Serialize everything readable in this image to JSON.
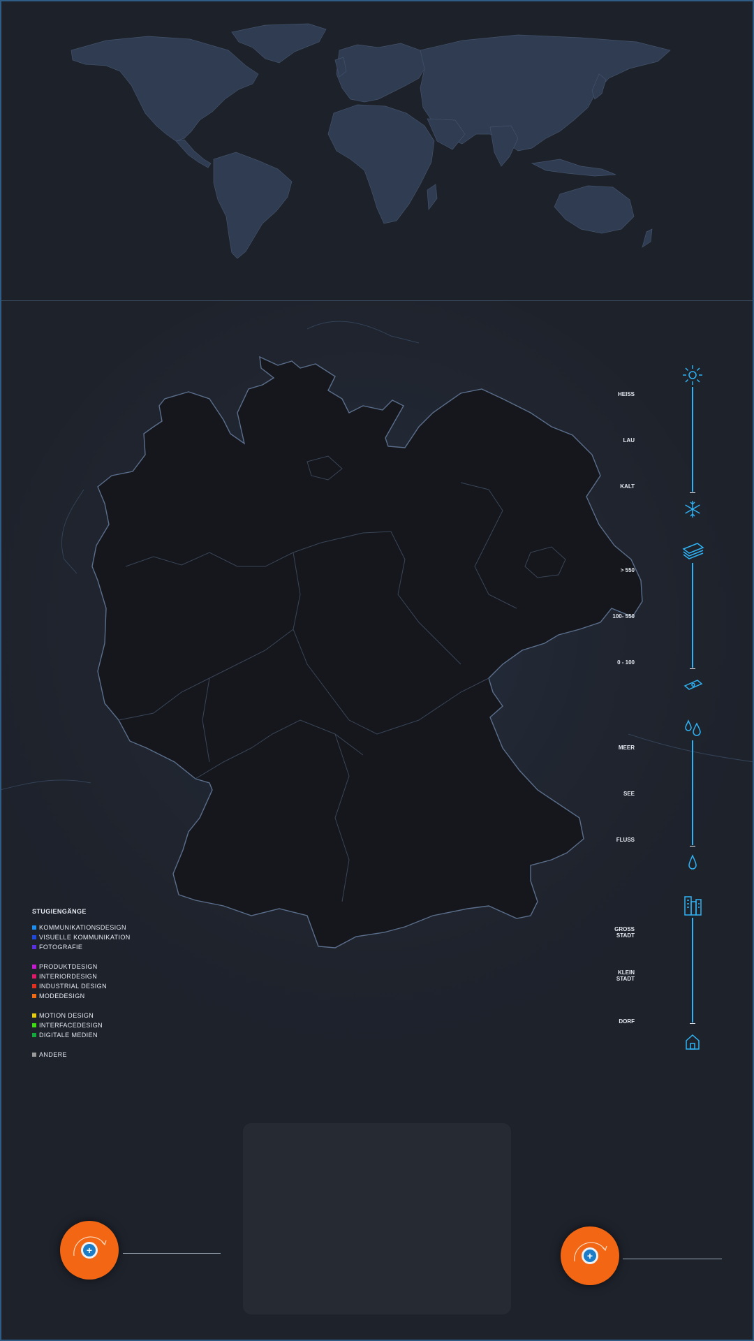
{
  "legend": {
    "title": "STUGIENGÄNGE",
    "groups": [
      {
        "items": [
          {
            "label": "KOMMUNIKATIONSDESIGN",
            "color": "#1c8ff0"
          },
          {
            "label": "VISUELLE KOMMUNIKATION",
            "color": "#1f49d8"
          },
          {
            "label": "FOTOGRAFIE",
            "color": "#5a2fe0"
          }
        ]
      },
      {
        "items": [
          {
            "label": "PRODUKTDESIGN",
            "color": "#c51ad0"
          },
          {
            "label": "INTERIORDESIGN",
            "color": "#e0186a"
          },
          {
            "label": "INDUSTRIAL DESIGN",
            "color": "#e02f1f"
          },
          {
            "label": "MODEDESIGN",
            "color": "#ee6a14"
          }
        ]
      },
      {
        "items": [
          {
            "label": "MOTION DESIGN",
            "color": "#e6cd10"
          },
          {
            "label": "INTERFACEDESIGN",
            "color": "#3fdc14"
          },
          {
            "label": "DIGITALE MEDIEN",
            "color": "#14a83c"
          }
        ]
      },
      {
        "items": [
          {
            "label": "ANDERE",
            "color": "#9a9a9a"
          }
        ]
      }
    ]
  },
  "scales": {
    "climate": {
      "top_icon": "sun-icon",
      "bottom_icon": "snowflake-icon",
      "labels": [
        "HEISS",
        "LAU",
        "KALT"
      ]
    },
    "cost": {
      "top_icon": "money-stack-icon",
      "bottom_icon": "money-bill-icon",
      "labels": [
        "> 550",
        "100- 550",
        "0 - 100"
      ]
    },
    "water": {
      "top_icon": "water-drops-icon",
      "bottom_icon": "water-drop-icon",
      "labels": [
        "MEER",
        "SEE",
        "FLUSS"
      ]
    },
    "city": {
      "top_icon": "city-buildings-icon",
      "bottom_icon": "village-house-icon",
      "labels": [
        "GROSS\nSTADT",
        "KLEIN\nSTADT",
        "DORF"
      ]
    }
  },
  "buttons": {
    "left_add_icon": "+",
    "right_add_icon": "+"
  },
  "colors": {
    "accent": "#2fb3f5",
    "fab": "#f26614",
    "background": "#1e222b",
    "map_land": "#15171c",
    "world_land": "#2f3c52"
  }
}
